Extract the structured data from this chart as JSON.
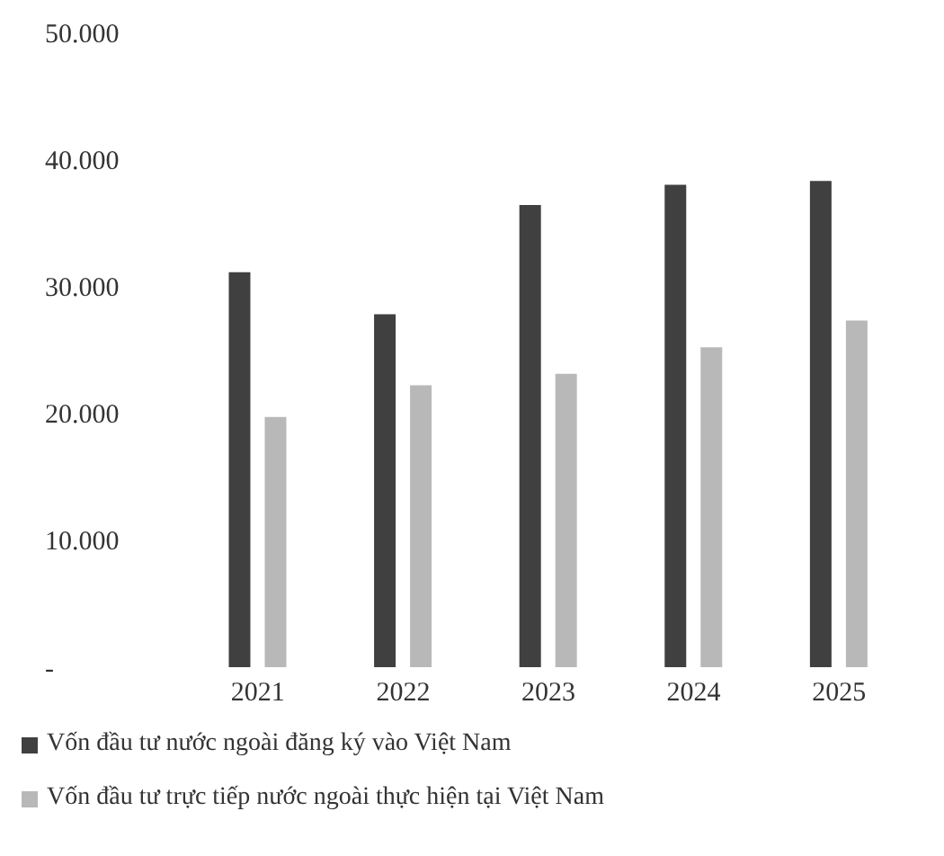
{
  "chart_data": {
    "type": "bar",
    "categories": [
      "2021",
      "2022",
      "2023",
      "2024",
      "2025"
    ],
    "series": [
      {
        "name": "Vốn đầu tư nước ngoài đăng ký vào Việt Nam",
        "color": "#404040",
        "values": [
          31100,
          27800,
          36400,
          38000,
          38300
        ]
      },
      {
        "name": "Vốn đầu tư trực tiếp nước ngoài thực hiện tại Việt Nam",
        "color": "#b8b8b8",
        "values": [
          19700,
          22200,
          23100,
          25200,
          27300
        ]
      }
    ],
    "ylim": [
      0,
      50000
    ],
    "yticks": [
      {
        "value": 0,
        "label": "-"
      },
      {
        "value": 10000,
        "label": "10.000"
      },
      {
        "value": 20000,
        "label": "20.000"
      },
      {
        "value": 30000,
        "label": "30.000"
      },
      {
        "value": 40000,
        "label": "40.000"
      },
      {
        "value": 50000,
        "label": "50.000"
      }
    ],
    "grid": false,
    "legend": "bottom"
  }
}
